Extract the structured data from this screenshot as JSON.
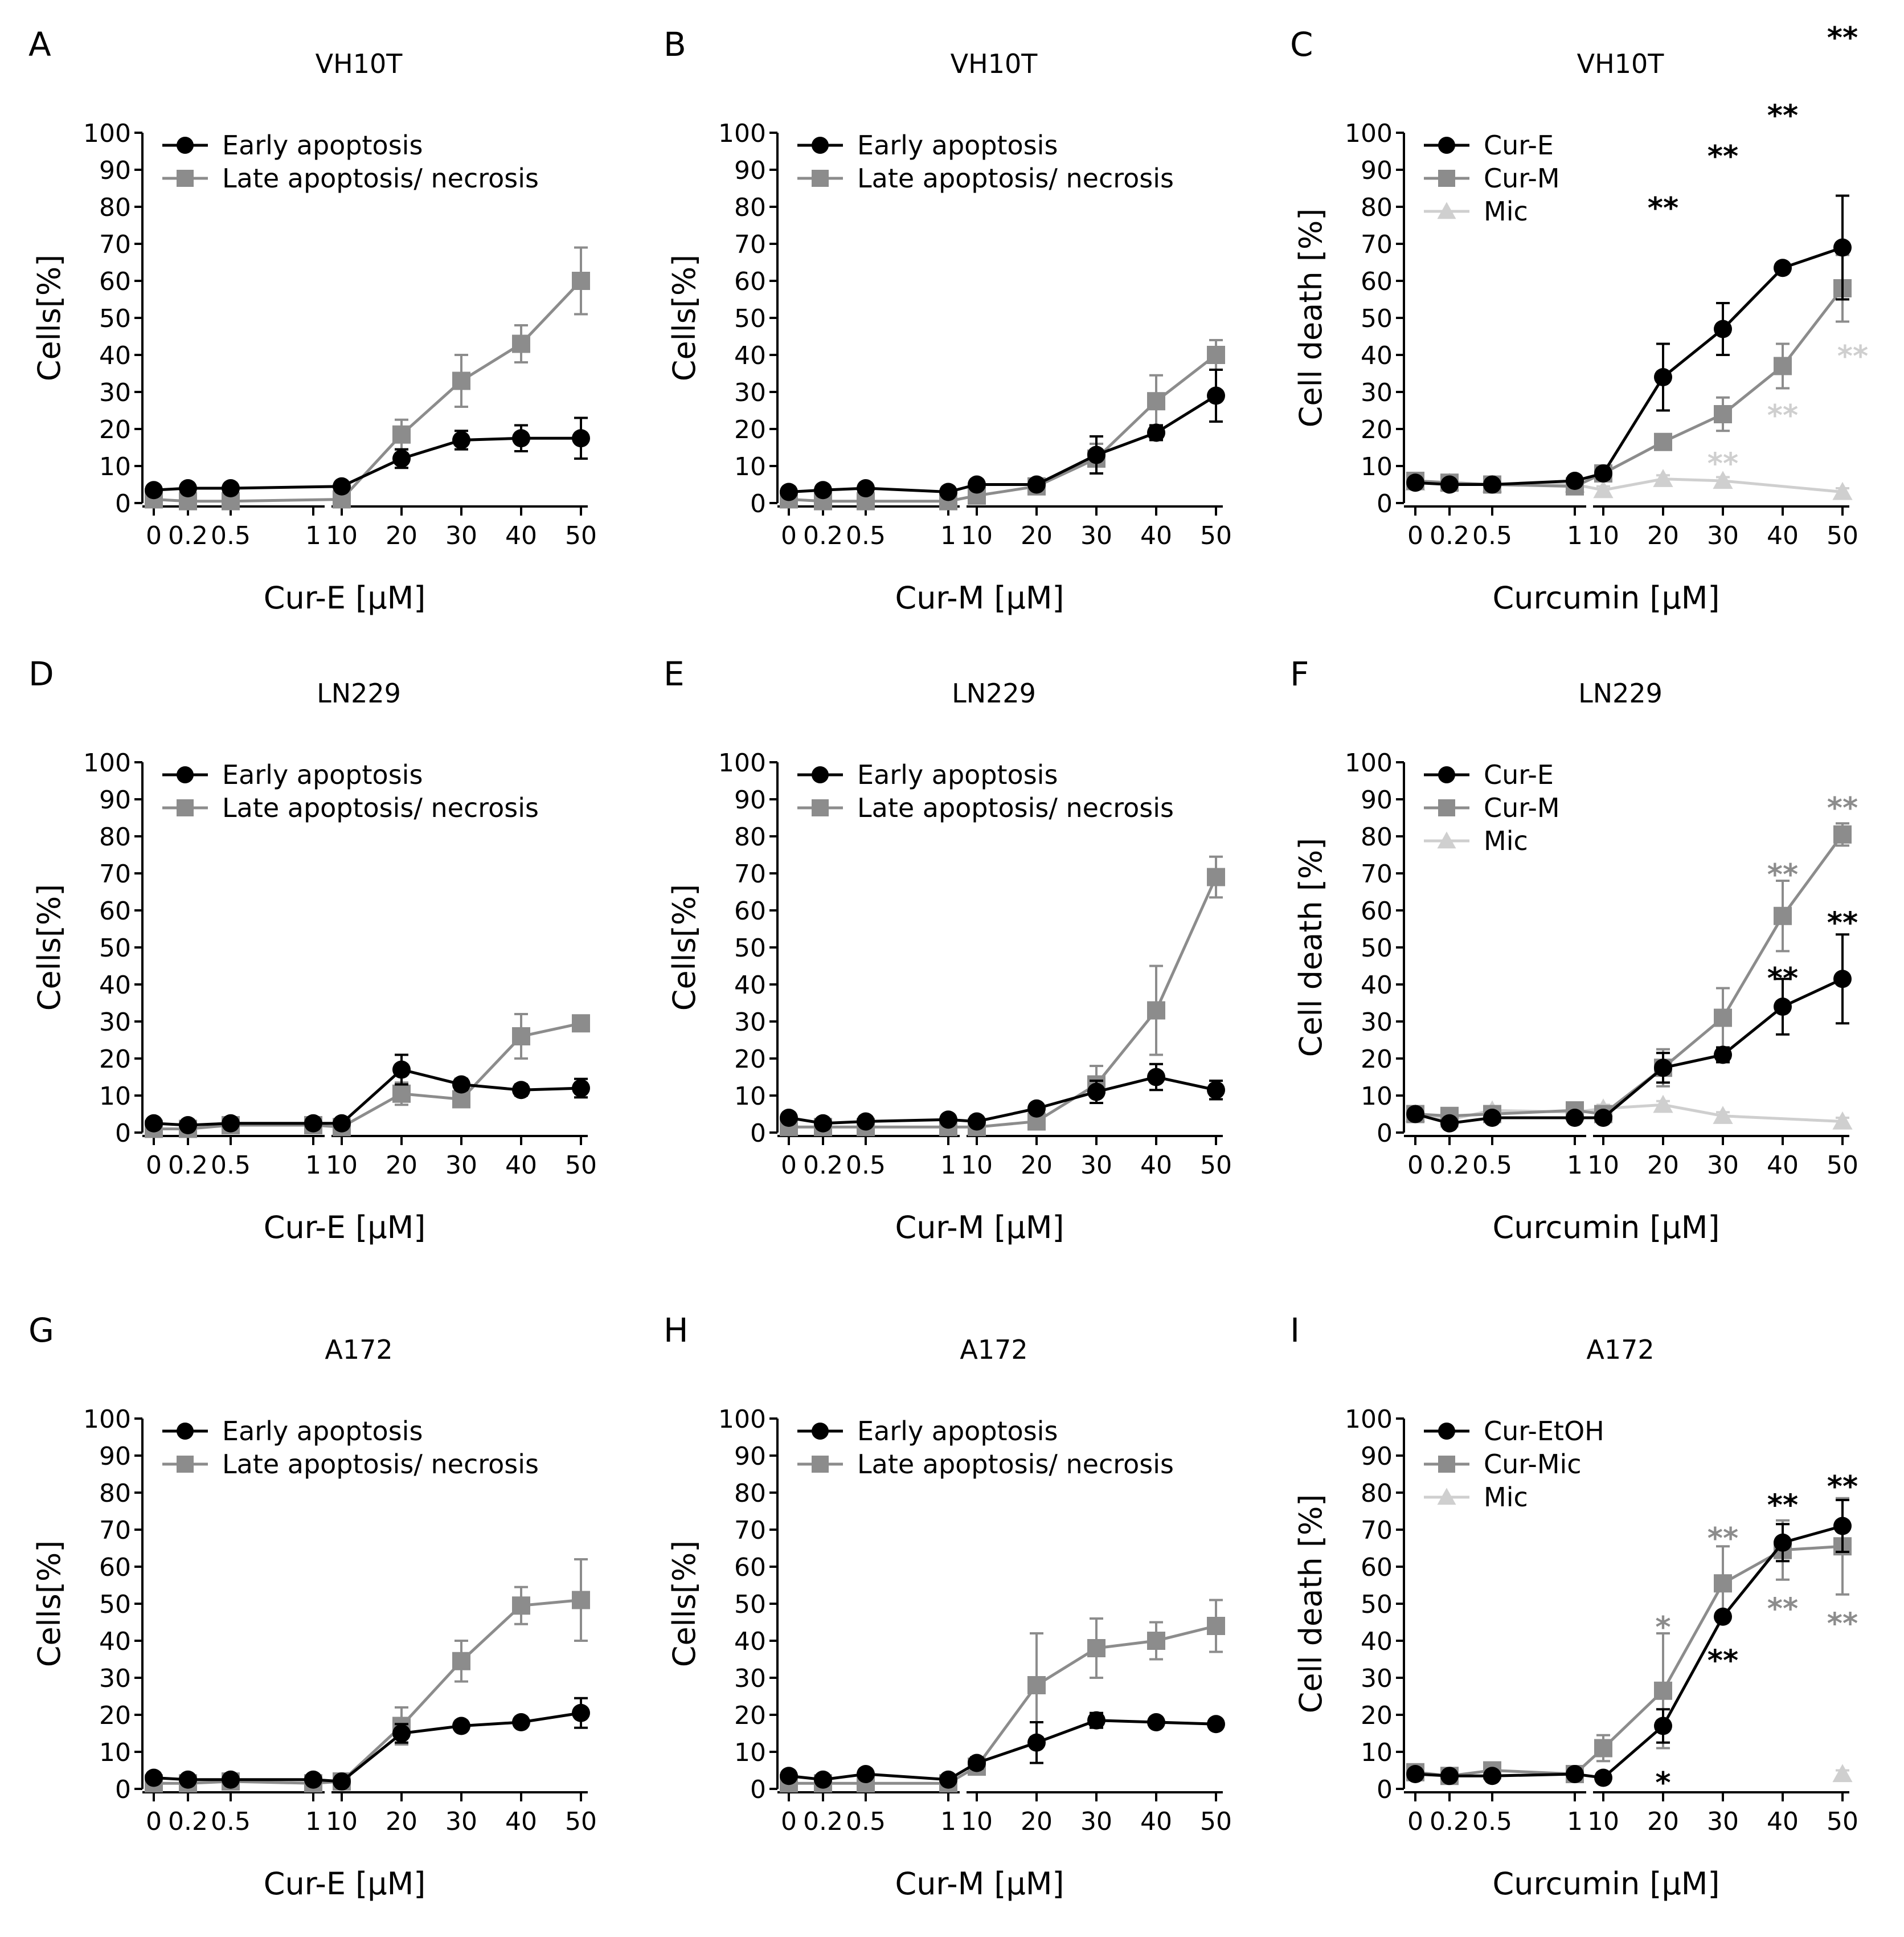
{
  "figure": {
    "colors": {
      "black": "#000000",
      "gray": "#8c8c8c",
      "lightgray": "#cfcfcf"
    }
  },
  "chart_data": [
    {
      "panel": "A",
      "type": "line",
      "title": "VH10T",
      "xlabel": "Cur-E [µM]",
      "ylabel": "Cells[%]",
      "ylim": [
        0,
        100
      ],
      "xticks": [
        "0",
        "0.2",
        "0.5",
        "1",
        "10",
        "20",
        "30",
        "40",
        "50"
      ],
      "series": [
        {
          "name": "Early apoptosis",
          "marker": "circle",
          "color": "#000000",
          "values": [
            3.5,
            4,
            4,
            null,
            4.5,
            12,
            17,
            17.5,
            17.5
          ],
          "errors": [
            1,
            1,
            1,
            null,
            1,
            2.5,
            2.5,
            3.5,
            5.5
          ]
        },
        {
          "name": "Late apoptosis/ necrosis",
          "marker": "square",
          "color": "#8c8c8c",
          "values": [
            1,
            0.5,
            0.5,
            null,
            1,
            18.5,
            33,
            43,
            60
          ],
          "errors": [
            1,
            1,
            1,
            null,
            1,
            4,
            7,
            5,
            9
          ]
        }
      ],
      "sig": []
    },
    {
      "panel": "B",
      "type": "line",
      "title": "VH10T",
      "xlabel": "Cur-M [µM]",
      "ylabel": "Cells[%]",
      "ylim": [
        0,
        100
      ],
      "xticks": [
        "0",
        "0.2",
        "0.5",
        "1",
        "10",
        "20",
        "30",
        "40",
        "50"
      ],
      "series": [
        {
          "name": "Early apoptosis",
          "marker": "circle",
          "color": "#000000",
          "values": [
            3,
            3.5,
            4,
            3,
            5,
            5,
            13,
            19,
            29
          ],
          "errors": [
            1,
            1,
            1,
            1,
            1,
            1,
            5,
            2,
            7
          ]
        },
        {
          "name": "Late apoptosis/ necrosis",
          "marker": "square",
          "color": "#8c8c8c",
          "values": [
            1,
            0.5,
            0.5,
            0.5,
            2,
            4.5,
            12,
            27.5,
            40
          ],
          "errors": [
            1,
            1,
            1,
            1,
            1,
            1,
            4,
            7,
            4
          ]
        }
      ],
      "sig": []
    },
    {
      "panel": "C",
      "type": "line",
      "title": "VH10T",
      "xlabel": "Curcumin [µM]",
      "ylabel": "Cell death [%]",
      "ylim": [
        0,
        100
      ],
      "xticks": [
        "0",
        "0.2",
        "0.5",
        "1",
        "10",
        "20",
        "30",
        "40",
        "50"
      ],
      "series": [
        {
          "name": "Cur-E",
          "marker": "circle",
          "color": "#000000",
          "values": [
            5.5,
            5,
            5,
            6,
            8,
            34,
            47,
            63.5,
            69
          ],
          "errors": [
            1,
            1,
            1,
            1,
            1.5,
            9,
            7,
            1,
            14
          ]
        },
        {
          "name": "Cur-M",
          "marker": "square",
          "color": "#8c8c8c",
          "values": [
            6,
            5.5,
            5,
            4.5,
            8,
            16.5,
            24,
            37,
            58
          ],
          "errors": [
            1,
            1,
            1,
            1,
            1,
            1.5,
            4.5,
            6,
            9
          ]
        },
        {
          "name": "Mic",
          "marker": "triangle",
          "color": "#cfcfcf",
          "values": [
            5.5,
            5.5,
            5,
            5,
            3.5,
            6.5,
            6,
            null,
            3
          ],
          "errors": [
            1,
            1,
            1,
            1,
            1,
            1,
            1,
            null,
            1
          ]
        }
      ],
      "sig": [
        {
          "xi": 5,
          "y": 80,
          "text": "**",
          "color": "#000000"
        },
        {
          "xi": 6,
          "y": 94,
          "text": "**",
          "color": "#000000"
        },
        {
          "xi": 7,
          "y": 105,
          "text": "**",
          "color": "#000000"
        },
        {
          "xi": 8,
          "y": 126,
          "text": "**",
          "color": "#000000"
        },
        {
          "xi": 8,
          "y": 40,
          "text": "**",
          "color": "#cfcfcf",
          "dx": 0.6
        },
        {
          "xi": 7,
          "y": 24,
          "text": "**",
          "color": "#cfcfcf"
        },
        {
          "xi": 6,
          "y": 11,
          "text": "**",
          "color": "#cfcfcf"
        }
      ]
    },
    {
      "panel": "D",
      "type": "line",
      "title": "LN229",
      "xlabel": "Cur-E [µM]",
      "ylabel": "Cells[%]",
      "ylim": [
        0,
        100
      ],
      "xticks": [
        "0",
        "0.2",
        "0.5",
        "1",
        "10",
        "20",
        "30",
        "40",
        "50"
      ],
      "series": [
        {
          "name": "Early apoptosis",
          "marker": "circle",
          "color": "#000000",
          "values": [
            2.5,
            2,
            2.5,
            2.5,
            2.5,
            17,
            13,
            11.5,
            12
          ],
          "errors": [
            1,
            1,
            1,
            1,
            1,
            4,
            1.5,
            1.5,
            2.5
          ]
        },
        {
          "name": "Late apoptosis/ necrosis",
          "marker": "square",
          "color": "#8c8c8c",
          "values": [
            1,
            1,
            2,
            2,
            1.5,
            10.5,
            9,
            26,
            29.5
          ],
          "errors": [
            1,
            1,
            1,
            1,
            1,
            3,
            2,
            6,
            1.5
          ]
        }
      ],
      "sig": []
    },
    {
      "panel": "E",
      "type": "line",
      "title": "LN229",
      "xlabel": "Cur-M [µM]",
      "ylabel": "Cells[%]",
      "ylim": [
        0,
        100
      ],
      "xticks": [
        "0",
        "0.2",
        "0.5",
        "1",
        "10",
        "20",
        "30",
        "40",
        "50"
      ],
      "series": [
        {
          "name": "Early apoptosis",
          "marker": "circle",
          "color": "#000000",
          "values": [
            4,
            2.5,
            3,
            3.5,
            3,
            6.5,
            11,
            15,
            11.5
          ],
          "errors": [
            1,
            1,
            1,
            1,
            1,
            1,
            3,
            3.5,
            2.5
          ]
        },
        {
          "name": "Late apoptosis/ necrosis",
          "marker": "square",
          "color": "#8c8c8c",
          "values": [
            1.5,
            1.5,
            1.5,
            1.5,
            1.5,
            3,
            13,
            33,
            69
          ],
          "errors": [
            1,
            1,
            1,
            1,
            1,
            1,
            5,
            12,
            5.5
          ]
        }
      ],
      "sig": []
    },
    {
      "panel": "F",
      "type": "line",
      "title": "LN229",
      "xlabel": "Curcumin [µM]",
      "ylabel": "Cell death [%]",
      "ylim": [
        0,
        100
      ],
      "xticks": [
        "0",
        "0.2",
        "0.5",
        "1",
        "10",
        "20",
        "30",
        "40",
        "50"
      ],
      "series": [
        {
          "name": "Cur-E",
          "marker": "circle",
          "color": "#000000",
          "values": [
            5,
            2.5,
            4,
            4,
            4,
            17.5,
            21,
            34,
            41.5
          ],
          "errors": [
            1,
            1,
            1,
            1,
            1,
            4,
            2,
            7.5,
            12
          ]
        },
        {
          "name": "Cur-M",
          "marker": "square",
          "color": "#8c8c8c",
          "values": [
            5,
            4.5,
            5,
            6,
            5,
            17.5,
            31,
            58.5,
            80.5
          ],
          "errors": [
            1,
            1,
            1,
            1,
            1,
            5,
            8,
            9.5,
            3
          ]
        },
        {
          "name": "Mic",
          "marker": "triangle",
          "color": "#cfcfcf",
          "values": [
            5,
            3.5,
            6,
            5.5,
            6.5,
            7.5,
            4.5,
            null,
            3
          ],
          "errors": [
            1,
            1,
            1,
            1,
            1,
            1,
            1,
            null,
            1
          ]
        }
      ],
      "sig": [
        {
          "xi": 8,
          "y": 88,
          "text": "**",
          "color": "#8c8c8c"
        },
        {
          "xi": 7,
          "y": 70,
          "text": "**",
          "color": "#8c8c8c"
        },
        {
          "xi": 8,
          "y": 57,
          "text": "**",
          "color": "#000000"
        },
        {
          "xi": 7,
          "y": 42,
          "text": "**",
          "color": "#000000"
        }
      ]
    },
    {
      "panel": "G",
      "type": "line",
      "title": "A172",
      "xlabel": "Cur-E [µM]",
      "ylabel": "Cells[%]",
      "ylim": [
        0,
        100
      ],
      "xticks": [
        "0",
        "0.2",
        "0.5",
        "1",
        "10",
        "20",
        "30",
        "40",
        "50"
      ],
      "series": [
        {
          "name": "Early apoptosis",
          "marker": "circle",
          "color": "#000000",
          "values": [
            3,
            2.5,
            2.5,
            2.5,
            2,
            15,
            17,
            18,
            20.5
          ],
          "errors": [
            1,
            1,
            1,
            1,
            1,
            2.5,
            1,
            1,
            4
          ]
        },
        {
          "name": "Late apoptosis/ necrosis",
          "marker": "square",
          "color": "#8c8c8c",
          "values": [
            1.5,
            1.5,
            2,
            1.5,
            2,
            17,
            34.5,
            49.5,
            51
          ],
          "errors": [
            1,
            1,
            1,
            1,
            1,
            5,
            5.5,
            5,
            11
          ]
        }
      ],
      "sig": []
    },
    {
      "panel": "H",
      "type": "line",
      "title": "A172",
      "xlabel": "Cur-M [µM]",
      "ylabel": "Cells[%]",
      "ylim": [
        0,
        100
      ],
      "xticks": [
        "0",
        "0.2",
        "0.5",
        "1",
        "10",
        "20",
        "30",
        "40",
        "50"
      ],
      "series": [
        {
          "name": "Early apoptosis",
          "marker": "circle",
          "color": "#000000",
          "values": [
            3.5,
            2.5,
            4,
            2.5,
            7,
            12.5,
            18.5,
            18,
            17.5
          ],
          "errors": [
            1,
            1,
            1,
            1,
            1.5,
            5.5,
            2,
            1,
            1
          ]
        },
        {
          "name": "Late apoptosis/ necrosis",
          "marker": "square",
          "color": "#8c8c8c",
          "values": [
            1.5,
            1.5,
            1.5,
            1.5,
            6,
            28,
            38,
            40,
            44
          ],
          "errors": [
            1,
            1,
            1,
            1,
            1.5,
            14,
            8,
            5,
            7
          ]
        }
      ],
      "sig": []
    },
    {
      "panel": "I",
      "type": "line",
      "title": "A172",
      "xlabel": "Curcumin [µM]",
      "ylabel": "Cell death [%]",
      "ylim": [
        0,
        100
      ],
      "xticks": [
        "0",
        "0.2",
        "0.5",
        "1",
        "10",
        "20",
        "30",
        "40",
        "50"
      ],
      "series": [
        {
          "name": "Cur-EtOH",
          "marker": "circle",
          "color": "#000000",
          "values": [
            4,
            3.5,
            3.5,
            4,
            3,
            17,
            46.5,
            66.5,
            71
          ],
          "errors": [
            1,
            1,
            1,
            1,
            1,
            4.5,
            1,
            5,
            7
          ]
        },
        {
          "name": "Cur-Mic",
          "marker": "square",
          "color": "#8c8c8c",
          "values": [
            4.5,
            3.5,
            5,
            4,
            11,
            26.5,
            55.5,
            64.5,
            65.5
          ],
          "errors": [
            1,
            1,
            1,
            1,
            3.5,
            15.5,
            10,
            8,
            13
          ]
        },
        {
          "name": "Mic",
          "marker": "triangle",
          "color": "#cfcfcf",
          "values": [
            null,
            null,
            null,
            null,
            null,
            null,
            null,
            null,
            4
          ],
          "errors": [
            null,
            null,
            null,
            null,
            null,
            null,
            null,
            null,
            1
          ]
        }
      ],
      "sig": [
        {
          "xi": 5,
          "y": 44,
          "text": "*",
          "color": "#8c8c8c"
        },
        {
          "xi": 6,
          "y": 68,
          "text": "**",
          "color": "#8c8c8c"
        },
        {
          "xi": 7,
          "y": 77,
          "text": "**",
          "color": "#000000"
        },
        {
          "xi": 8,
          "y": 82,
          "text": "**",
          "color": "#000000"
        },
        {
          "xi": 6,
          "y": 35,
          "text": "**",
          "color": "#000000"
        },
        {
          "xi": 5,
          "y": 2,
          "text": "*",
          "color": "#000000"
        },
        {
          "xi": 7,
          "y": 49,
          "text": "**",
          "color": "#8c8c8c"
        },
        {
          "xi": 8,
          "y": 45,
          "text": "**",
          "color": "#8c8c8c"
        }
      ]
    }
  ]
}
